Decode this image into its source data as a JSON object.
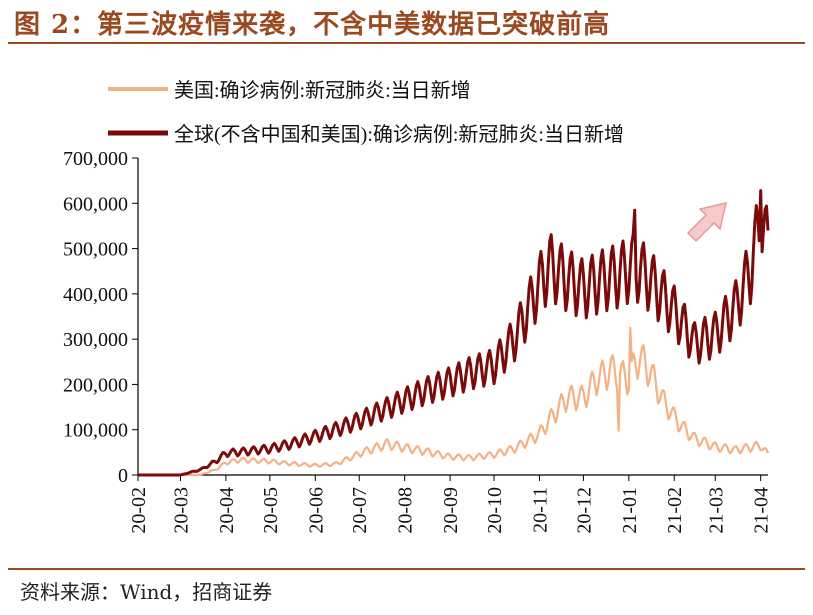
{
  "title": "图 2：第三波疫情来袭，不含中美数据已突破前高",
  "source": "资料来源：Wind，招商证券",
  "colors": {
    "us": "#f4b183",
    "global": "#7b0a0a",
    "brand": "#9a4a20",
    "arrow": "#f8c9c9",
    "arrow_stroke": "#e89999"
  },
  "chart_data": {
    "type": "line",
    "xlabel": "",
    "ylabel": "",
    "ylim": [
      0,
      700000
    ],
    "yticks": [
      0,
      100000,
      200000,
      300000,
      400000,
      500000,
      600000,
      700000
    ],
    "ytick_labels": [
      "0",
      "100,000",
      "200,000",
      "300,000",
      "400,000",
      "500,000",
      "600,000",
      "700,000"
    ],
    "xticks": [
      "20-02",
      "20-03",
      "20-04",
      "20-05",
      "20-06",
      "20-07",
      "20-08",
      "20-09",
      "20-10",
      "20-11",
      "20-12",
      "21-01",
      "21-02",
      "21-03",
      "21-04"
    ],
    "xrange": [
      "2020-02-01",
      "2021-04-06"
    ],
    "legend_position": "top-left",
    "grid": false,
    "annotation": "upward-arrow",
    "series": [
      {
        "name": "美国:确诊病例:新冠肺炎:当日新增",
        "color": "#f4b183",
        "points": [
          [
            "2020-02-01",
            0
          ],
          [
            "2020-03-01",
            0
          ],
          [
            "2020-03-15",
            1000
          ],
          [
            "2020-03-25",
            12000
          ],
          [
            "2020-04-01",
            27000
          ],
          [
            "2020-04-10",
            33000
          ],
          [
            "2020-04-25",
            31000
          ],
          [
            "2020-05-01",
            30000
          ],
          [
            "2020-05-15",
            25000
          ],
          [
            "2020-06-01",
            21000
          ],
          [
            "2020-06-15",
            24000
          ],
          [
            "2020-06-25",
            38000
          ],
          [
            "2020-07-05",
            52000
          ],
          [
            "2020-07-20",
            68000
          ],
          [
            "2020-08-01",
            60000
          ],
          [
            "2020-08-15",
            52000
          ],
          [
            "2020-09-01",
            40000
          ],
          [
            "2020-09-15",
            38000
          ],
          [
            "2020-10-01",
            45000
          ],
          [
            "2020-10-15",
            58000
          ],
          [
            "2020-11-01",
            90000
          ],
          [
            "2020-11-10",
            130000
          ],
          [
            "2020-11-20",
            170000
          ],
          [
            "2020-12-01",
            170000
          ],
          [
            "2020-12-10",
            210000
          ],
          [
            "2020-12-20",
            230000
          ],
          [
            "2021-01-01",
            210000
          ],
          [
            "2021-01-08",
            260000
          ],
          [
            "2021-01-15",
            230000
          ],
          [
            "2021-01-25",
            160000
          ],
          [
            "2021-02-05",
            110000
          ],
          [
            "2021-02-15",
            80000
          ],
          [
            "2021-03-01",
            62000
          ],
          [
            "2021-03-15",
            55000
          ],
          [
            "2021-04-01",
            65000
          ],
          [
            "2021-04-06",
            45000
          ]
        ],
        "spikes": [
          [
            "2021-01-02",
            325000
          ],
          [
            "2020-12-25",
            98000
          ]
        ]
      },
      {
        "name": "全球(不含中国和美国):确诊病例:新冠肺炎:当日新增",
        "color": "#7b0a0a",
        "points": [
          [
            "2020-02-01",
            0
          ],
          [
            "2020-03-01",
            0
          ],
          [
            "2020-03-15",
            12000
          ],
          [
            "2020-03-25",
            30000
          ],
          [
            "2020-04-01",
            48000
          ],
          [
            "2020-04-15",
            52000
          ],
          [
            "2020-05-01",
            58000
          ],
          [
            "2020-05-15",
            68000
          ],
          [
            "2020-06-01",
            85000
          ],
          [
            "2020-06-15",
            100000
          ],
          [
            "2020-07-01",
            120000
          ],
          [
            "2020-07-15",
            140000
          ],
          [
            "2020-08-01",
            165000
          ],
          [
            "2020-08-15",
            185000
          ],
          [
            "2020-09-01",
            205000
          ],
          [
            "2020-09-15",
            225000
          ],
          [
            "2020-10-01",
            240000
          ],
          [
            "2020-10-15",
            300000
          ],
          [
            "2020-10-25",
            370000
          ],
          [
            "2020-11-01",
            420000
          ],
          [
            "2020-11-08",
            460000
          ],
          [
            "2020-11-20",
            430000
          ],
          [
            "2020-12-01",
            410000
          ],
          [
            "2020-12-15",
            430000
          ],
          [
            "2020-12-25",
            440000
          ],
          [
            "2021-01-05",
            460000
          ],
          [
            "2021-01-15",
            430000
          ],
          [
            "2021-02-01",
            360000
          ],
          [
            "2021-02-15",
            290000
          ],
          [
            "2021-03-01",
            310000
          ],
          [
            "2021-03-15",
            370000
          ],
          [
            "2021-03-25",
            450000
          ],
          [
            "2021-04-01",
            560000
          ],
          [
            "2021-04-06",
            500000
          ]
        ],
        "spikes": [
          [
            "2021-01-05",
            585000
          ],
          [
            "2021-04-01",
            628000
          ]
        ]
      }
    ]
  }
}
